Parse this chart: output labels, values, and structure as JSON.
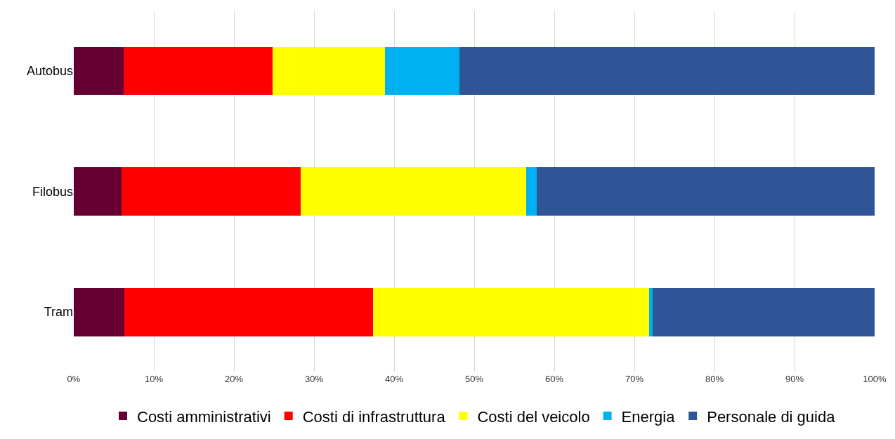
{
  "chart_data": {
    "type": "bar",
    "orientation": "horizontal",
    "stacked": true,
    "categories": [
      "Autobus",
      "Filobus",
      "Tram"
    ],
    "series": [
      {
        "name": "Costi amministrativi",
        "color": "#660033",
        "values": [
          6.2,
          6.0,
          6.3
        ]
      },
      {
        "name": "Costi di infrastruttura",
        "color": "#ff0000",
        "values": [
          18.6,
          22.3,
          31.1
        ]
      },
      {
        "name": "Costi del veicolo",
        "color": "#ffff00",
        "values": [
          14.1,
          28.2,
          34.4
        ]
      },
      {
        "name": "Energia",
        "color": "#00b0f0",
        "values": [
          9.3,
          1.3,
          0.5
        ]
      },
      {
        "name": "Personale di guida",
        "color": "#2f5597",
        "values": [
          51.8,
          42.2,
          27.7
        ]
      }
    ],
    "xlim": [
      0,
      100
    ],
    "xticks": [
      {
        "value": 0,
        "label": "0%"
      },
      {
        "value": 10,
        "label": "10%"
      },
      {
        "value": 20,
        "label": "20%"
      },
      {
        "value": 30,
        "label": "30%"
      },
      {
        "value": 40,
        "label": "40%"
      },
      {
        "value": 50,
        "label": "50%"
      },
      {
        "value": 60,
        "label": "60%"
      },
      {
        "value": 70,
        "label": "70%"
      },
      {
        "value": 80,
        "label": "80%"
      },
      {
        "value": 90,
        "label": "90%"
      },
      {
        "value": 100,
        "label": "100%"
      }
    ],
    "grid": "x",
    "legend": "bottom"
  }
}
